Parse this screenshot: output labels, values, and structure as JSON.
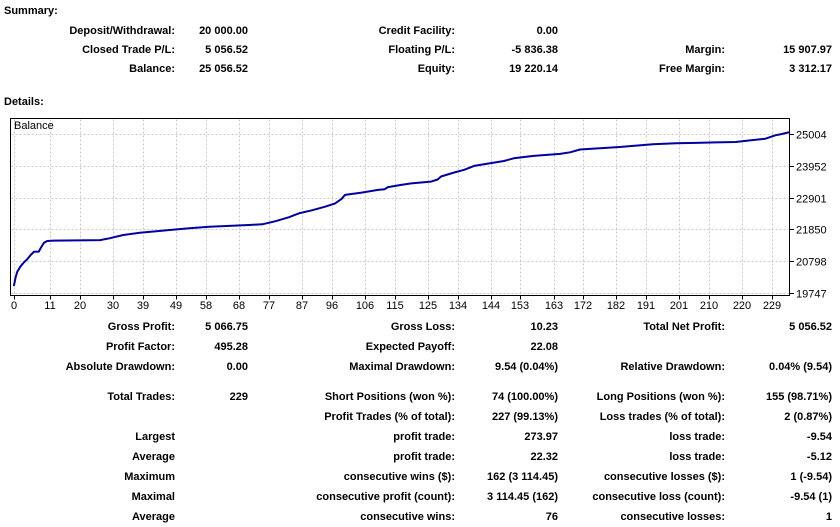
{
  "summary": {
    "heading": "Summary:",
    "rows": [
      [
        "Deposit/Withdrawal:",
        "20 000.00",
        "Credit Facility:",
        "0.00",
        "",
        ""
      ],
      [
        "Closed Trade P/L:",
        "5 056.52",
        "Floating P/L:",
        "-5 836.38",
        "Margin:",
        "15 907.97"
      ],
      [
        "Balance:",
        "25 056.52",
        "Equity:",
        "19 220.14",
        "Free Margin:",
        "3 312.17"
      ]
    ]
  },
  "details": {
    "heading": "Details:",
    "rows": [
      [
        "Gross Profit:",
        "5 066.75",
        "Gross Loss:",
        "10.23",
        "Total Net Profit:",
        "5 056.52"
      ],
      [
        "Profit Factor:",
        "495.28",
        "Expected Payoff:",
        "22.08",
        "",
        ""
      ],
      [
        "Absolute Drawdown:",
        "0.00",
        "Maximal Drawdown:",
        "9.54 (0.04%)",
        "Relative Drawdown:",
        "0.04% (9.54)"
      ],
      [
        "Total Trades:",
        "229",
        "Short Positions (won %):",
        "74 (100.00%)",
        "Long Positions (won %):",
        "155 (98.71%)"
      ],
      [
        "",
        "",
        "Profit Trades (% of total):",
        "227 (99.13%)",
        "Loss trades (% of total):",
        "2 (0.87%)"
      ],
      [
        "Largest",
        "",
        "profit trade:",
        "273.97",
        "loss trade:",
        "-9.54"
      ],
      [
        "Average",
        "",
        "profit trade:",
        "22.32",
        "loss trade:",
        "-5.12"
      ],
      [
        "Maximum",
        "",
        "consecutive wins ($):",
        "162 (3 114.45)",
        "consecutive losses ($):",
        "1 (-9.54)"
      ],
      [
        "Maximal",
        "",
        "consecutive profit (count):",
        "3 114.45 (162)",
        "consecutive loss (count):",
        "-9.54 (1)"
      ],
      [
        "Average",
        "",
        "consecutive wins:",
        "76",
        "consecutive losses:",
        "1"
      ]
    ]
  },
  "chart_data": {
    "type": "line",
    "title": "Balance",
    "xlabel": "",
    "ylabel": "",
    "x_ticks": [
      0,
      11,
      20,
      30,
      39,
      49,
      58,
      68,
      77,
      87,
      96,
      106,
      115,
      125,
      134,
      144,
      153,
      163,
      172,
      182,
      191,
      201,
      210,
      220,
      229
    ],
    "y_ticks": [
      19747,
      20798,
      21850,
      22901,
      23952,
      25004
    ],
    "x_range": [
      -1.2,
      234.6
    ],
    "y_range": [
      19664,
      25534
    ],
    "grid": true,
    "grid_color": "#c8c8c8",
    "line_color": "#0000a0",
    "series": [
      {
        "name": "Balance",
        "points": [
          [
            0,
            20000
          ],
          [
            0.5,
            20280
          ],
          [
            1,
            20450
          ],
          [
            2,
            20630
          ],
          [
            3,
            20760
          ],
          [
            4,
            20860
          ],
          [
            5,
            21000
          ],
          [
            6,
            21110
          ],
          [
            7.5,
            21115
          ],
          [
            8,
            21220
          ],
          [
            9,
            21400
          ],
          [
            10,
            21465
          ],
          [
            12,
            21480
          ],
          [
            26,
            21495
          ],
          [
            29,
            21560
          ],
          [
            33,
            21665
          ],
          [
            38,
            21740
          ],
          [
            43,
            21790
          ],
          [
            47,
            21830
          ],
          [
            53,
            21890
          ],
          [
            59,
            21940
          ],
          [
            65,
            21965
          ],
          [
            71,
            21995
          ],
          [
            75,
            22020
          ],
          [
            79,
            22120
          ],
          [
            83,
            22250
          ],
          [
            86,
            22380
          ],
          [
            90,
            22480
          ],
          [
            94,
            22600
          ],
          [
            97,
            22710
          ],
          [
            99,
            22860
          ],
          [
            100,
            22990
          ],
          [
            105,
            23065
          ],
          [
            110,
            23155
          ],
          [
            112,
            23180
          ],
          [
            113,
            23250
          ],
          [
            117,
            23320
          ],
          [
            120,
            23370
          ],
          [
            126,
            23430
          ],
          [
            128,
            23500
          ],
          [
            129,
            23600
          ],
          [
            133,
            23730
          ],
          [
            136,
            23820
          ],
          [
            139,
            23950
          ],
          [
            145,
            24060
          ],
          [
            148,
            24110
          ],
          [
            151,
            24200
          ],
          [
            157,
            24280
          ],
          [
            165,
            24345
          ],
          [
            168,
            24400
          ],
          [
            171,
            24490
          ],
          [
            177,
            24530
          ],
          [
            183,
            24575
          ],
          [
            188,
            24620
          ],
          [
            193,
            24665
          ],
          [
            200,
            24695
          ],
          [
            206,
            24710
          ],
          [
            212,
            24725
          ],
          [
            218,
            24740
          ],
          [
            222,
            24790
          ],
          [
            227,
            24850
          ],
          [
            230,
            24960
          ],
          [
            232,
            25004
          ],
          [
            234,
            25056
          ]
        ]
      }
    ]
  }
}
